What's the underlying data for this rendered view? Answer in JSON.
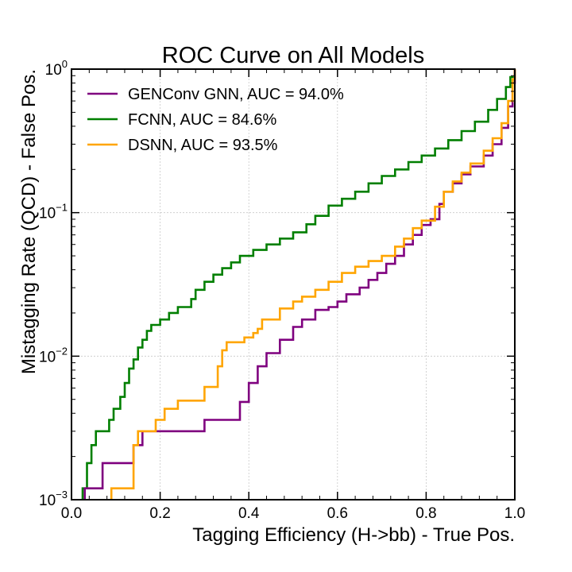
{
  "chart_data": {
    "type": "line",
    "title": "ROC Curve on All Models",
    "xlabel": "Tagging Efficiency (H->bb) - True Pos.",
    "ylabel": "Mistagging Rate (QCD) - False Pos.",
    "xlim": [
      0.0,
      1.0
    ],
    "ylim": [
      0.001,
      1.0
    ],
    "yscale": "log",
    "grid": true,
    "legend_position": "top-left",
    "x_ticks": [
      {
        "value": 0.0,
        "label": "0.0"
      },
      {
        "value": 0.2,
        "label": "0.2"
      },
      {
        "value": 0.4,
        "label": "0.4"
      },
      {
        "value": 0.6,
        "label": "0.6"
      },
      {
        "value": 0.8,
        "label": "0.8"
      },
      {
        "value": 1.0,
        "label": "1.0"
      }
    ],
    "y_ticks": [
      {
        "value": 0.001,
        "base": "10",
        "exp": "−3"
      },
      {
        "value": 0.01,
        "base": "10",
        "exp": "−2"
      },
      {
        "value": 0.1,
        "base": "10",
        "exp": "−1"
      },
      {
        "value": 1.0,
        "base": "10",
        "exp": "0"
      }
    ],
    "series": [
      {
        "name": "GENConv GNN, AUC = 94.0%",
        "color": "#7f007f",
        "points": [
          [
            0.03,
            0.001
          ],
          [
            0.03,
            0.0012
          ],
          [
            0.07,
            0.0012
          ],
          [
            0.07,
            0.0018
          ],
          [
            0.14,
            0.0018
          ],
          [
            0.14,
            0.0024
          ],
          [
            0.16,
            0.0024
          ],
          [
            0.16,
            0.003
          ],
          [
            0.3,
            0.003
          ],
          [
            0.3,
            0.0036
          ],
          [
            0.38,
            0.0036
          ],
          [
            0.38,
            0.0048
          ],
          [
            0.4,
            0.0048
          ],
          [
            0.4,
            0.0065
          ],
          [
            0.42,
            0.0065
          ],
          [
            0.42,
            0.0085
          ],
          [
            0.44,
            0.0085
          ],
          [
            0.44,
            0.0105
          ],
          [
            0.47,
            0.0105
          ],
          [
            0.47,
            0.013
          ],
          [
            0.5,
            0.013
          ],
          [
            0.5,
            0.016
          ],
          [
            0.52,
            0.016
          ],
          [
            0.52,
            0.018
          ],
          [
            0.55,
            0.018
          ],
          [
            0.55,
            0.021
          ],
          [
            0.58,
            0.021
          ],
          [
            0.58,
            0.022
          ],
          [
            0.6,
            0.022
          ],
          [
            0.6,
            0.024
          ],
          [
            0.62,
            0.024
          ],
          [
            0.62,
            0.027
          ],
          [
            0.65,
            0.027
          ],
          [
            0.65,
            0.03
          ],
          [
            0.67,
            0.03
          ],
          [
            0.67,
            0.034
          ],
          [
            0.69,
            0.034
          ],
          [
            0.69,
            0.038
          ],
          [
            0.71,
            0.038
          ],
          [
            0.71,
            0.044
          ],
          [
            0.73,
            0.044
          ],
          [
            0.73,
            0.05
          ],
          [
            0.75,
            0.05
          ],
          [
            0.75,
            0.06
          ],
          [
            0.77,
            0.06
          ],
          [
            0.77,
            0.07
          ],
          [
            0.79,
            0.07
          ],
          [
            0.79,
            0.082
          ],
          [
            0.81,
            0.082
          ],
          [
            0.81,
            0.09
          ],
          [
            0.83,
            0.09
          ],
          [
            0.83,
            0.115
          ],
          [
            0.84,
            0.115
          ],
          [
            0.84,
            0.14
          ],
          [
            0.86,
            0.14
          ],
          [
            0.86,
            0.16
          ],
          [
            0.88,
            0.16
          ],
          [
            0.88,
            0.185
          ],
          [
            0.9,
            0.185
          ],
          [
            0.9,
            0.21
          ],
          [
            0.93,
            0.21
          ],
          [
            0.93,
            0.25
          ],
          [
            0.95,
            0.25
          ],
          [
            0.95,
            0.3
          ],
          [
            0.97,
            0.3
          ],
          [
            0.97,
            0.39
          ],
          [
            0.985,
            0.39
          ],
          [
            0.985,
            0.55
          ],
          [
            0.995,
            0.55
          ],
          [
            0.995,
            0.8
          ],
          [
            1.0,
            0.8
          ],
          [
            1.0,
            1.0
          ]
        ]
      },
      {
        "name": "FCNN, AUC = 84.6%",
        "color": "#007f00",
        "points": [
          [
            0.025,
            0.001
          ],
          [
            0.025,
            0.0012
          ],
          [
            0.035,
            0.0012
          ],
          [
            0.035,
            0.0018
          ],
          [
            0.045,
            0.0018
          ],
          [
            0.045,
            0.0024
          ],
          [
            0.055,
            0.0024
          ],
          [
            0.055,
            0.003
          ],
          [
            0.085,
            0.003
          ],
          [
            0.085,
            0.0036
          ],
          [
            0.095,
            0.0036
          ],
          [
            0.095,
            0.0043
          ],
          [
            0.11,
            0.0043
          ],
          [
            0.11,
            0.0052
          ],
          [
            0.12,
            0.0052
          ],
          [
            0.12,
            0.0065
          ],
          [
            0.13,
            0.0065
          ],
          [
            0.13,
            0.0082
          ],
          [
            0.14,
            0.0082
          ],
          [
            0.14,
            0.0095
          ],
          [
            0.15,
            0.0095
          ],
          [
            0.15,
            0.0115
          ],
          [
            0.16,
            0.0115
          ],
          [
            0.16,
            0.013
          ],
          [
            0.17,
            0.013
          ],
          [
            0.17,
            0.015
          ],
          [
            0.18,
            0.015
          ],
          [
            0.18,
            0.0165
          ],
          [
            0.2,
            0.0165
          ],
          [
            0.2,
            0.018
          ],
          [
            0.22,
            0.018
          ],
          [
            0.22,
            0.02
          ],
          [
            0.24,
            0.02
          ],
          [
            0.24,
            0.022
          ],
          [
            0.27,
            0.022
          ],
          [
            0.27,
            0.025
          ],
          [
            0.28,
            0.025
          ],
          [
            0.28,
            0.029
          ],
          [
            0.3,
            0.029
          ],
          [
            0.3,
            0.033
          ],
          [
            0.32,
            0.033
          ],
          [
            0.32,
            0.037
          ],
          [
            0.34,
            0.037
          ],
          [
            0.34,
            0.041
          ],
          [
            0.36,
            0.041
          ],
          [
            0.36,
            0.045
          ],
          [
            0.38,
            0.045
          ],
          [
            0.38,
            0.05
          ],
          [
            0.41,
            0.05
          ],
          [
            0.41,
            0.055
          ],
          [
            0.44,
            0.055
          ],
          [
            0.44,
            0.06
          ],
          [
            0.47,
            0.06
          ],
          [
            0.47,
            0.066
          ],
          [
            0.5,
            0.066
          ],
          [
            0.5,
            0.073
          ],
          [
            0.53,
            0.073
          ],
          [
            0.53,
            0.083
          ],
          [
            0.55,
            0.083
          ],
          [
            0.55,
            0.095
          ],
          [
            0.58,
            0.095
          ],
          [
            0.58,
            0.112
          ],
          [
            0.61,
            0.112
          ],
          [
            0.61,
            0.125
          ],
          [
            0.64,
            0.125
          ],
          [
            0.64,
            0.14
          ],
          [
            0.67,
            0.14
          ],
          [
            0.67,
            0.16
          ],
          [
            0.7,
            0.16
          ],
          [
            0.7,
            0.18
          ],
          [
            0.73,
            0.18
          ],
          [
            0.73,
            0.2
          ],
          [
            0.76,
            0.2
          ],
          [
            0.76,
            0.225
          ],
          [
            0.79,
            0.225
          ],
          [
            0.79,
            0.25
          ],
          [
            0.82,
            0.25
          ],
          [
            0.82,
            0.28
          ],
          [
            0.85,
            0.28
          ],
          [
            0.85,
            0.32
          ],
          [
            0.88,
            0.32
          ],
          [
            0.88,
            0.37
          ],
          [
            0.91,
            0.37
          ],
          [
            0.91,
            0.43
          ],
          [
            0.94,
            0.43
          ],
          [
            0.94,
            0.52
          ],
          [
            0.96,
            0.52
          ],
          [
            0.96,
            0.62
          ],
          [
            0.98,
            0.62
          ],
          [
            0.98,
            0.75
          ],
          [
            0.99,
            0.75
          ],
          [
            0.99,
            0.88
          ],
          [
            1.0,
            0.88
          ],
          [
            1.0,
            1.0
          ]
        ]
      },
      {
        "name": "DSNN, AUC = 93.5%",
        "color": "#ffa500",
        "points": [
          [
            0.09,
            0.001
          ],
          [
            0.09,
            0.0012
          ],
          [
            0.14,
            0.0012
          ],
          [
            0.14,
            0.0024
          ],
          [
            0.15,
            0.0024
          ],
          [
            0.15,
            0.003
          ],
          [
            0.19,
            0.003
          ],
          [
            0.19,
            0.0036
          ],
          [
            0.21,
            0.0036
          ],
          [
            0.21,
            0.0043
          ],
          [
            0.24,
            0.0043
          ],
          [
            0.24,
            0.0049
          ],
          [
            0.3,
            0.0049
          ],
          [
            0.3,
            0.0061
          ],
          [
            0.33,
            0.0061
          ],
          [
            0.33,
            0.0085
          ],
          [
            0.34,
            0.0085
          ],
          [
            0.34,
            0.011
          ],
          [
            0.35,
            0.011
          ],
          [
            0.35,
            0.0125
          ],
          [
            0.39,
            0.0125
          ],
          [
            0.39,
            0.0135
          ],
          [
            0.41,
            0.0135
          ],
          [
            0.41,
            0.0145
          ],
          [
            0.42,
            0.0145
          ],
          [
            0.42,
            0.0155
          ],
          [
            0.43,
            0.0155
          ],
          [
            0.43,
            0.018
          ],
          [
            0.47,
            0.018
          ],
          [
            0.47,
            0.0215
          ],
          [
            0.5,
            0.0215
          ],
          [
            0.5,
            0.024
          ],
          [
            0.52,
            0.024
          ],
          [
            0.52,
            0.026
          ],
          [
            0.55,
            0.026
          ],
          [
            0.55,
            0.029
          ],
          [
            0.58,
            0.029
          ],
          [
            0.58,
            0.033
          ],
          [
            0.61,
            0.033
          ],
          [
            0.61,
            0.038
          ],
          [
            0.64,
            0.038
          ],
          [
            0.64,
            0.042
          ],
          [
            0.67,
            0.042
          ],
          [
            0.67,
            0.046
          ],
          [
            0.7,
            0.046
          ],
          [
            0.7,
            0.05
          ],
          [
            0.73,
            0.05
          ],
          [
            0.73,
            0.058
          ],
          [
            0.75,
            0.058
          ],
          [
            0.75,
            0.066
          ],
          [
            0.77,
            0.066
          ],
          [
            0.77,
            0.078
          ],
          [
            0.79,
            0.078
          ],
          [
            0.79,
            0.088
          ],
          [
            0.82,
            0.088
          ],
          [
            0.82,
            0.11
          ],
          [
            0.84,
            0.11
          ],
          [
            0.84,
            0.14
          ],
          [
            0.86,
            0.14
          ],
          [
            0.86,
            0.165
          ],
          [
            0.88,
            0.165
          ],
          [
            0.88,
            0.19
          ],
          [
            0.9,
            0.19
          ],
          [
            0.9,
            0.22
          ],
          [
            0.93,
            0.22
          ],
          [
            0.93,
            0.27
          ],
          [
            0.95,
            0.27
          ],
          [
            0.95,
            0.33
          ],
          [
            0.97,
            0.33
          ],
          [
            0.97,
            0.42
          ],
          [
            0.985,
            0.42
          ],
          [
            0.985,
            0.6
          ],
          [
            0.995,
            0.6
          ],
          [
            0.995,
            0.85
          ],
          [
            1.0,
            0.85
          ],
          [
            1.0,
            1.0
          ]
        ]
      }
    ]
  }
}
